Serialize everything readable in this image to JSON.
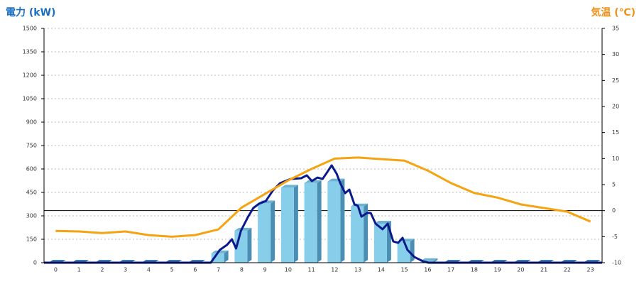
{
  "chart_data": {
    "type": "combo",
    "y_title": "電力 (kW)",
    "y2_title": "気温 (℃)",
    "y_title_color": "#1a6fc0",
    "y2_title_color": "#f0901a",
    "categories": [
      0,
      1,
      2,
      3,
      4,
      5,
      6,
      7,
      8,
      9,
      10,
      11,
      12,
      13,
      14,
      15,
      16,
      17,
      18,
      19,
      20,
      21,
      22,
      23
    ],
    "ylim": [
      0,
      1500
    ],
    "yticks": [
      0,
      150,
      300,
      450,
      600,
      750,
      900,
      1050,
      1200,
      1350,
      1500
    ],
    "y2lim": [
      -10,
      35
    ],
    "y2ticks": [
      -10,
      -5,
      0,
      5,
      10,
      15,
      20,
      25,
      30,
      35
    ],
    "grid": true,
    "y2_zero_line": true,
    "series": [
      {
        "type": "bar",
        "color": "#87ceeb",
        "values": [
          0,
          0,
          0,
          0,
          0,
          0,
          0,
          60,
          205,
          380,
          480,
          510,
          520,
          360,
          250,
          135,
          10,
          0,
          0,
          0,
          0,
          0,
          0,
          0
        ]
      },
      {
        "type": "line",
        "color": "#0a1a8c",
        "x": [
          -0.5,
          6.67,
          7.06,
          7.37,
          7.58,
          7.76,
          7.97,
          8.28,
          8.5,
          8.74,
          9.04,
          9.35,
          9.65,
          10.1,
          10.56,
          10.8,
          11.02,
          11.26,
          11.48,
          11.69,
          11.87,
          12.09,
          12.24,
          12.45,
          12.63,
          12.85,
          13.0,
          13.15,
          13.39,
          13.55,
          13.76,
          14.06,
          14.28,
          14.52,
          14.73,
          14.92,
          15.13,
          15.43,
          15.8,
          16.04,
          23.5
        ],
        "values": [
          0,
          0,
          82,
          114,
          150,
          91,
          205,
          295,
          350,
          377,
          395,
          464,
          509,
          536,
          541,
          559,
          523,
          545,
          536,
          582,
          623,
          568,
          509,
          445,
          468,
          373,
          364,
          295,
          318,
          318,
          250,
          214,
          250,
          136,
          127,
          159,
          82,
          36,
          9,
          0,
          0
        ]
      },
      {
        "type": "line",
        "axis": "y2",
        "color": "#f5a311",
        "values": [
          -3.9,
          -4.0,
          -4.3,
          -4.0,
          -4.7,
          -5.0,
          -4.7,
          -3.6,
          0.6,
          3.2,
          5.8,
          8.0,
          10.0,
          10.2,
          9.9,
          9.6,
          7.7,
          5.3,
          3.4,
          2.5,
          1.2,
          0.5,
          -0.2,
          -2.1
        ]
      }
    ]
  }
}
